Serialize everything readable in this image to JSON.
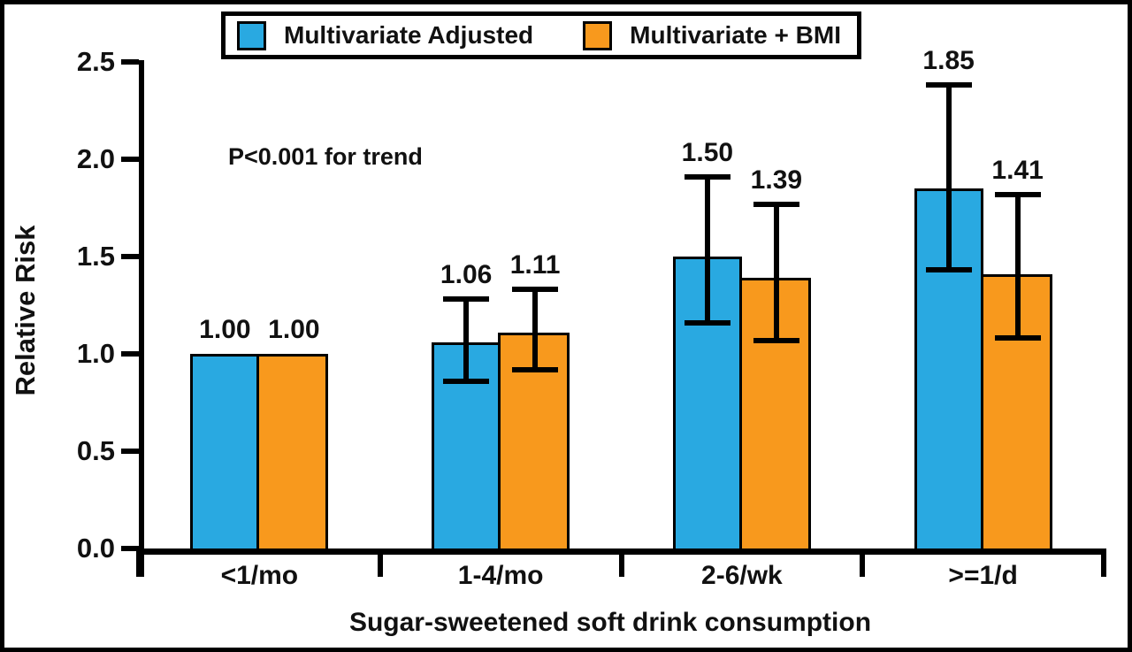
{
  "chart_data": {
    "type": "bar",
    "title": "",
    "xlabel": "Sugar-sweetened soft drink consumption",
    "ylabel": "Relative Risk",
    "annotation": "P<0.001 for trend",
    "categories": [
      "<1/mo",
      "1-4/mo",
      "2-6/wk",
      ">=1/d"
    ],
    "y_ticks": [
      "0.0",
      "0.5",
      "1.0",
      "1.5",
      "2.0",
      "2.5"
    ],
    "y_tick_values": [
      0.0,
      0.5,
      1.0,
      1.5,
      2.0,
      2.5
    ],
    "ylim": [
      0,
      2.5
    ],
    "grid": false,
    "legend_position": "top",
    "series": [
      {
        "name": "Multivariate Adjusted",
        "color": "#29A9E1",
        "values": [
          1.0,
          1.06,
          1.5,
          1.85
        ],
        "labels": [
          "1.00",
          "1.06",
          "1.50",
          "1.85"
        ],
        "err_low": [
          null,
          0.86,
          1.16,
          1.43
        ],
        "err_high": [
          null,
          1.28,
          1.91,
          2.38
        ]
      },
      {
        "name": "Multivariate + BMI",
        "color": "#F8991D",
        "values": [
          1.0,
          1.11,
          1.39,
          1.41
        ],
        "labels": [
          "1.00",
          "1.11",
          "1.39",
          "1.41"
        ],
        "err_low": [
          null,
          0.92,
          1.07,
          1.08
        ],
        "err_high": [
          null,
          1.33,
          1.77,
          1.82
        ]
      }
    ]
  }
}
